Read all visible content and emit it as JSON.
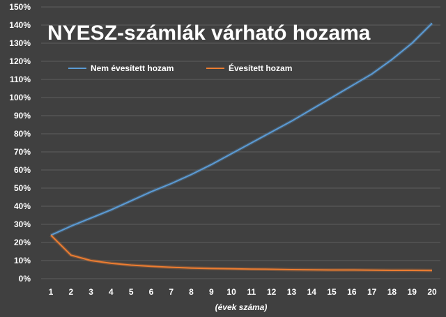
{
  "chart_data": {
    "type": "line",
    "title": "NYESZ-számlák várható hozama",
    "xlabel": "(évek száma)",
    "ylabel": "",
    "x": [
      1,
      2,
      3,
      4,
      5,
      6,
      7,
      8,
      9,
      10,
      11,
      12,
      13,
      14,
      15,
      16,
      17,
      18,
      19,
      20
    ],
    "ylim": [
      0,
      150
    ],
    "y_tick_labels": [
      "0%",
      "10%",
      "20%",
      "30%",
      "40%",
      "50%",
      "60%",
      "70%",
      "80%",
      "90%",
      "100%",
      "110%",
      "120%",
      "130%",
      "140%",
      "150%"
    ],
    "grid": true,
    "legend_position": "top-left",
    "series": [
      {
        "name": "Nem évesített hozam",
        "color": "#5b9bd5",
        "values": [
          24,
          29,
          33.5,
          38,
          43,
          48,
          52.5,
          57.5,
          63,
          69,
          75,
          81,
          87,
          93.5,
          100,
          106.5,
          113,
          121,
          130,
          141
        ]
      },
      {
        "name": "Évesített hozam",
        "color": "#ed7d31",
        "values": [
          24,
          13,
          10,
          8.5,
          7.5,
          6.8,
          6.3,
          5.9,
          5.6,
          5.5,
          5.3,
          5.2,
          5.0,
          4.9,
          4.8,
          4.8,
          4.7,
          4.6,
          4.6,
          4.5
        ]
      }
    ]
  }
}
